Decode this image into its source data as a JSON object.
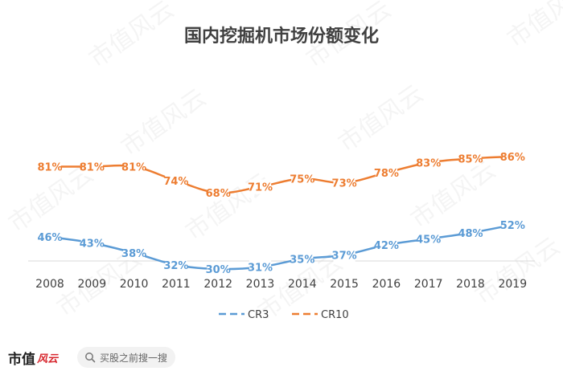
{
  "chart_data": {
    "type": "line",
    "title": "国内挖掘机市场份额变化",
    "categories": [
      "2008",
      "2009",
      "2010",
      "2011",
      "2012",
      "2013",
      "2014",
      "2015",
      "2016",
      "2017",
      "2018",
      "2019"
    ],
    "series": [
      {
        "name": "CR3",
        "values": [
          46,
          43,
          38,
          32,
          30,
          31,
          35,
          37,
          42,
          45,
          48,
          52
        ],
        "color": "#5b9bd5",
        "labels": [
          "46%",
          "43%",
          "38%",
          "32%",
          "30%",
          "31%",
          "35%",
          "37%",
          "42%",
          "45%",
          "48%",
          "52%"
        ]
      },
      {
        "name": "CR10",
        "values": [
          81,
          81,
          81,
          74,
          68,
          71,
          75,
          73,
          78,
          83,
          85,
          86
        ],
        "color": "#ed7d31",
        "labels": [
          "81%",
          "81%",
          "81%",
          "74%",
          "68%",
          "71%",
          "75%",
          "73%",
          "78%",
          "83%",
          "85%",
          "86%"
        ]
      }
    ],
    "legend": "bottom",
    "grid": false
  },
  "watermark": "市值风云",
  "footer": {
    "brand": "市值",
    "brand_mark": "风云",
    "search_text": "买股之前搜一搜",
    "search_icon": "search-icon"
  }
}
